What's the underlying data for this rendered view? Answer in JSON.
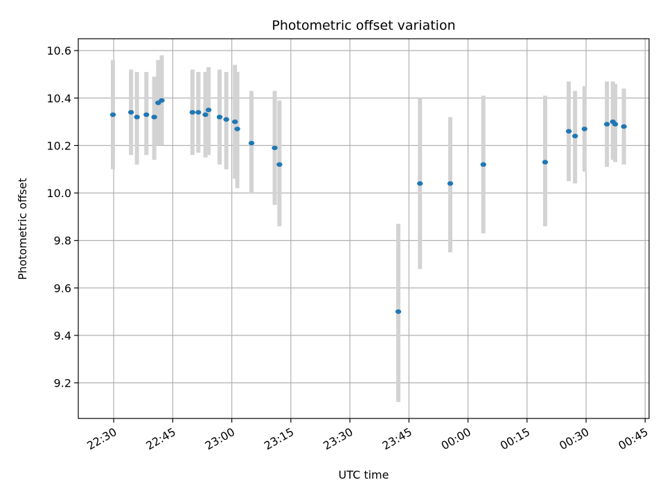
{
  "chart_data": {
    "type": "scatter",
    "title": "Photometric offset variation",
    "xlabel": "UTC time",
    "ylabel": "Photometric offset",
    "x_unit": "UTC time",
    "xlim": [
      "22:21",
      "00:46"
    ],
    "ylim": [
      9.05,
      10.65
    ],
    "grid": true,
    "x_ticks": [
      "22:30",
      "22:45",
      "23:00",
      "23:15",
      "23:30",
      "23:45",
      "00:00",
      "00:15",
      "00:30",
      "00:45"
    ],
    "y_ticks": [
      "9.2",
      "9.4",
      "9.6",
      "9.8",
      "10.0",
      "10.2",
      "10.4",
      "10.6"
    ],
    "colors": {
      "point": "#1f77b4",
      "errorbar": "#d3d3d3",
      "grid": "#b0b0b0"
    },
    "points": [
      {
        "t": "22:29.8",
        "y": 10.33,
        "lo": 10.1,
        "hi": 10.56
      },
      {
        "t": "22:34.4",
        "y": 10.34,
        "lo": 10.16,
        "hi": 10.52
      },
      {
        "t": "22:35.9",
        "y": 10.32,
        "lo": 10.12,
        "hi": 10.51
      },
      {
        "t": "22:38.3",
        "y": 10.33,
        "lo": 10.16,
        "hi": 10.51
      },
      {
        "t": "22:40.3",
        "y": 10.32,
        "lo": 10.14,
        "hi": 10.49
      },
      {
        "t": "22:41.3",
        "y": 10.38,
        "lo": 10.2,
        "hi": 10.56
      },
      {
        "t": "22:42.2",
        "y": 10.39,
        "lo": 10.2,
        "hi": 10.58
      },
      {
        "t": "22:50.0",
        "y": 10.34,
        "lo": 10.16,
        "hi": 10.52
      },
      {
        "t": "22:51.5",
        "y": 10.34,
        "lo": 10.17,
        "hi": 10.51
      },
      {
        "t": "22:53.3",
        "y": 10.33,
        "lo": 10.15,
        "hi": 10.51
      },
      {
        "t": "22:54.1",
        "y": 10.35,
        "lo": 10.16,
        "hi": 10.53
      },
      {
        "t": "22:56.9",
        "y": 10.32,
        "lo": 10.12,
        "hi": 10.52
      },
      {
        "t": "22:58.6",
        "y": 10.31,
        "lo": 10.1,
        "hi": 10.51
      },
      {
        "t": "23:00.8",
        "y": 10.3,
        "lo": 10.06,
        "hi": 10.54
      },
      {
        "t": "23:01.4",
        "y": 10.27,
        "lo": 10.02,
        "hi": 10.51
      },
      {
        "t": "23:05.0",
        "y": 10.21,
        "lo": 10.0,
        "hi": 10.43
      },
      {
        "t": "23:10.9",
        "y": 10.19,
        "lo": 9.95,
        "hi": 10.43
      },
      {
        "t": "23:12.1",
        "y": 10.12,
        "lo": 9.86,
        "hi": 10.39
      },
      {
        "t": "23:42.3",
        "y": 9.5,
        "lo": 9.12,
        "hi": 9.87
      },
      {
        "t": "23:47.8",
        "y": 10.04,
        "lo": 9.68,
        "hi": 10.4
      },
      {
        "t": "23:55.5",
        "y": 10.04,
        "lo": 9.75,
        "hi": 10.32
      },
      {
        "t": "00:03.9",
        "y": 10.12,
        "lo": 9.83,
        "hi": 10.41
      },
      {
        "t": "00:19.6",
        "y": 10.13,
        "lo": 9.86,
        "hi": 10.41
      },
      {
        "t": "00:25.6",
        "y": 10.26,
        "lo": 10.05,
        "hi": 10.47
      },
      {
        "t": "00:27.2",
        "y": 10.24,
        "lo": 10.04,
        "hi": 10.43
      },
      {
        "t": "00:29.6",
        "y": 10.27,
        "lo": 10.09,
        "hi": 10.45
      },
      {
        "t": "00:35.3",
        "y": 10.29,
        "lo": 10.11,
        "hi": 10.47
      },
      {
        "t": "00:36.8",
        "y": 10.3,
        "lo": 10.14,
        "hi": 10.47
      },
      {
        "t": "00:37.4",
        "y": 10.29,
        "lo": 10.13,
        "hi": 10.46
      },
      {
        "t": "00:39.6",
        "y": 10.28,
        "lo": 10.12,
        "hi": 10.44
      }
    ]
  }
}
